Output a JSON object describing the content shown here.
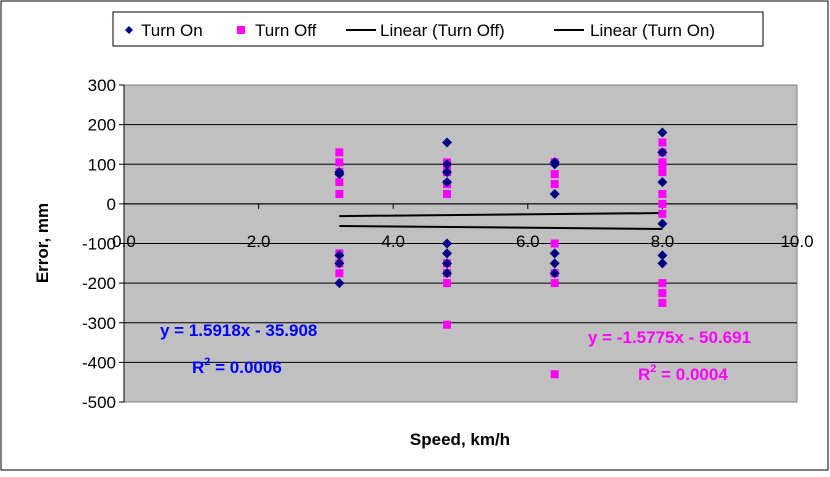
{
  "chart_data": {
    "type": "scatter",
    "title": "",
    "xlabel": "Speed, km/h",
    "ylabel": "Error, mm",
    "xlim": [
      0,
      10
    ],
    "ylim": [
      -500,
      300
    ],
    "x_ticks": [
      "0.0",
      "2.0",
      "4.0",
      "6.0",
      "8.0",
      "10.0"
    ],
    "y_ticks": [
      "300",
      "200",
      "100",
      "0",
      "-100",
      "-200",
      "-300",
      "-400",
      "-500"
    ],
    "grid": "horizontal",
    "legend_position": "top",
    "legend": [
      "Turn On",
      "Turn Off",
      "Linear (Turn Off)",
      "Linear (Turn On)"
    ],
    "series": [
      {
        "name": "Turn On",
        "marker": "diamond",
        "color": "#000080",
        "points": [
          [
            3.2,
            80
          ],
          [
            3.2,
            75
          ],
          [
            3.2,
            -130
          ],
          [
            3.2,
            -150
          ],
          [
            3.2,
            -200
          ],
          [
            4.8,
            155
          ],
          [
            4.8,
            100
          ],
          [
            4.8,
            80
          ],
          [
            4.8,
            55
          ],
          [
            4.8,
            -100
          ],
          [
            4.8,
            -125
          ],
          [
            4.8,
            -150
          ],
          [
            4.8,
            -175
          ],
          [
            6.4,
            105
          ],
          [
            6.4,
            100
          ],
          [
            6.4,
            25
          ],
          [
            6.4,
            -125
          ],
          [
            6.4,
            -150
          ],
          [
            6.4,
            -175
          ],
          [
            8.0,
            180
          ],
          [
            8.0,
            130
          ],
          [
            8.0,
            55
          ],
          [
            8.0,
            -50
          ],
          [
            8.0,
            -130
          ],
          [
            8.0,
            -150
          ]
        ]
      },
      {
        "name": "Turn Off",
        "marker": "square",
        "color": "#ff00ff",
        "points": [
          [
            3.2,
            130
          ],
          [
            3.2,
            105
          ],
          [
            3.2,
            80
          ],
          [
            3.2,
            55
          ],
          [
            3.2,
            25
          ],
          [
            3.2,
            -125
          ],
          [
            3.2,
            -150
          ],
          [
            3.2,
            -175
          ],
          [
            4.8,
            105
          ],
          [
            4.8,
            100
          ],
          [
            4.8,
            80
          ],
          [
            4.8,
            50
          ],
          [
            4.8,
            25
          ],
          [
            4.8,
            -150
          ],
          [
            4.8,
            -175
          ],
          [
            4.8,
            -200
          ],
          [
            4.8,
            -305
          ],
          [
            6.4,
            105
          ],
          [
            6.4,
            75
          ],
          [
            6.4,
            50
          ],
          [
            6.4,
            -100
          ],
          [
            6.4,
            -175
          ],
          [
            6.4,
            -200
          ],
          [
            6.4,
            -430
          ],
          [
            8.0,
            155
          ],
          [
            8.0,
            130
          ],
          [
            8.0,
            105
          ],
          [
            8.0,
            100
          ],
          [
            8.0,
            80
          ],
          [
            8.0,
            25
          ],
          [
            8.0,
            0
          ],
          [
            8.0,
            -25
          ],
          [
            8.0,
            -200
          ],
          [
            8.0,
            -225
          ],
          [
            8.0,
            -250
          ]
        ]
      }
    ],
    "trendlines": [
      {
        "name": "Linear (Turn Off)",
        "color": "#000000",
        "slope": -1.5775,
        "intercept": -50.691,
        "x_range": [
          3.2,
          8.0
        ]
      },
      {
        "name": "Linear (Turn On)",
        "color": "#000000",
        "slope": 1.5918,
        "intercept": -35.908,
        "x_range": [
          3.2,
          8.0
        ]
      }
    ],
    "annotations": [
      {
        "text": "y = 1.5918x - 35.908",
        "r2_base": "R",
        "r2_exp": "2",
        "r2_value": " = 0.0006",
        "color": "#0000ff"
      },
      {
        "text": "y = -1.5775x - 50.691",
        "r2_base": "R",
        "r2_exp": "2",
        "r2_value": " = 0.0004",
        "color": "#ff00ff"
      }
    ]
  }
}
